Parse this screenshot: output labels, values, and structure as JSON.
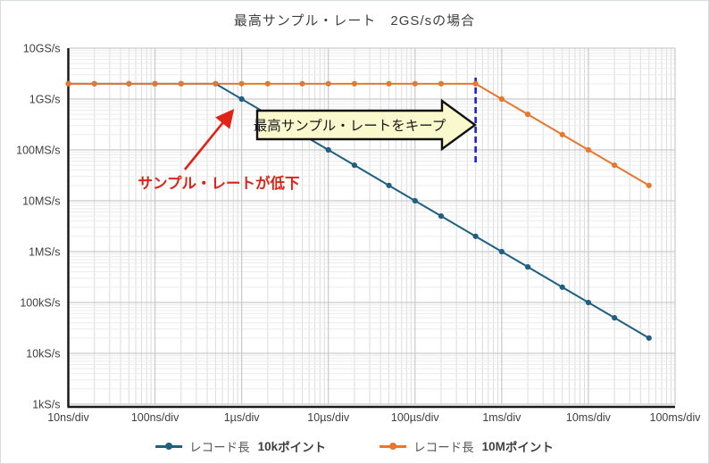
{
  "chart_data": {
    "type": "line",
    "title": "最高サンプル・レート　2GS/sの場合",
    "x_scale": "log",
    "y_scale": "log",
    "grid": "major+minor",
    "legend_position": "bottom",
    "x_range_s": [
      1e-08,
      0.1
    ],
    "y_range_sps": [
      1000.0,
      10000000000.0
    ],
    "x_ticks": [
      {
        "s": 1e-08,
        "label": "10ns/div"
      },
      {
        "s": 1e-07,
        "label": "100ns/div"
      },
      {
        "s": 1e-06,
        "label": "1µs/div"
      },
      {
        "s": 1e-05,
        "label": "10µs/div"
      },
      {
        "s": 0.0001,
        "label": "100µs/div"
      },
      {
        "s": 0.001,
        "label": "1ms/div"
      },
      {
        "s": 0.01,
        "label": "10ms/div"
      },
      {
        "s": 0.1,
        "label": "100ms/div"
      }
    ],
    "y_ticks": [
      {
        "sps": 10000000000.0,
        "label": "10GS/s"
      },
      {
        "sps": 1000000000.0,
        "label": "1GS/s"
      },
      {
        "sps": 100000000.0,
        "label": "100MS/s"
      },
      {
        "sps": 10000000.0,
        "label": "10MS/s"
      },
      {
        "sps": 1000000.0,
        "label": "1MS/s"
      },
      {
        "sps": 100000.0,
        "label": "100kS/s"
      },
      {
        "sps": 10000.0,
        "label": "10kS/s"
      },
      {
        "sps": 1000.0,
        "label": "1kS/s"
      }
    ],
    "x_s": [
      1e-08,
      2e-08,
      5e-08,
      1e-07,
      2e-07,
      5e-07,
      1e-06,
      2e-06,
      5e-06,
      1e-05,
      2e-05,
      5e-05,
      0.0001,
      0.0002,
      0.0005,
      0.001,
      0.002,
      0.005,
      0.01,
      0.02,
      0.05
    ],
    "series": [
      {
        "name_prefix": "レコード長",
        "name_bold": "10k",
        "name_suffix": "ポイント",
        "color": "#1f5f80",
        "values_sps": [
          2000000000.0,
          2000000000.0,
          2000000000.0,
          2000000000.0,
          2000000000.0,
          2000000000.0,
          1000000000.0,
          500000000.0,
          200000000.0,
          100000000.0,
          50000000.0,
          20000000.0,
          10000000.0,
          5000000.0,
          2000000.0,
          1000000.0,
          500000.0,
          200000.0,
          100000.0,
          50000.0,
          20000.0
        ]
      },
      {
        "name_prefix": "レコード長",
        "name_bold": "10M",
        "name_suffix": "ポイント",
        "color": "#e8772e",
        "values_sps": [
          2000000000.0,
          2000000000.0,
          2000000000.0,
          2000000000.0,
          2000000000.0,
          2000000000.0,
          2000000000.0,
          2000000000.0,
          2000000000.0,
          2000000000.0,
          2000000000.0,
          2000000000.0,
          2000000000.0,
          2000000000.0,
          2000000000.0,
          1000000000.0,
          500000000.0,
          200000000.0,
          100000000.0,
          50000000.0,
          20000000.0
        ]
      }
    ],
    "annotations": {
      "keep_callout": {
        "text": "最高サンプル・レートをキープ",
        "fill": "#faf8cd",
        "border": "#111111"
      },
      "drop_label": {
        "text": "サンプル・レートが低下",
        "color": "#e02318"
      },
      "dashed_line": {
        "x_s": 0.0005,
        "color": "#2222cc"
      }
    },
    "colors": {
      "grid_major": "#c9c9c9",
      "grid_minor_v": "#dcdcdc",
      "grid_minor_h": "#ececec",
      "axis": "#1a1a1a",
      "tick_text": "#3f3f3f"
    }
  }
}
